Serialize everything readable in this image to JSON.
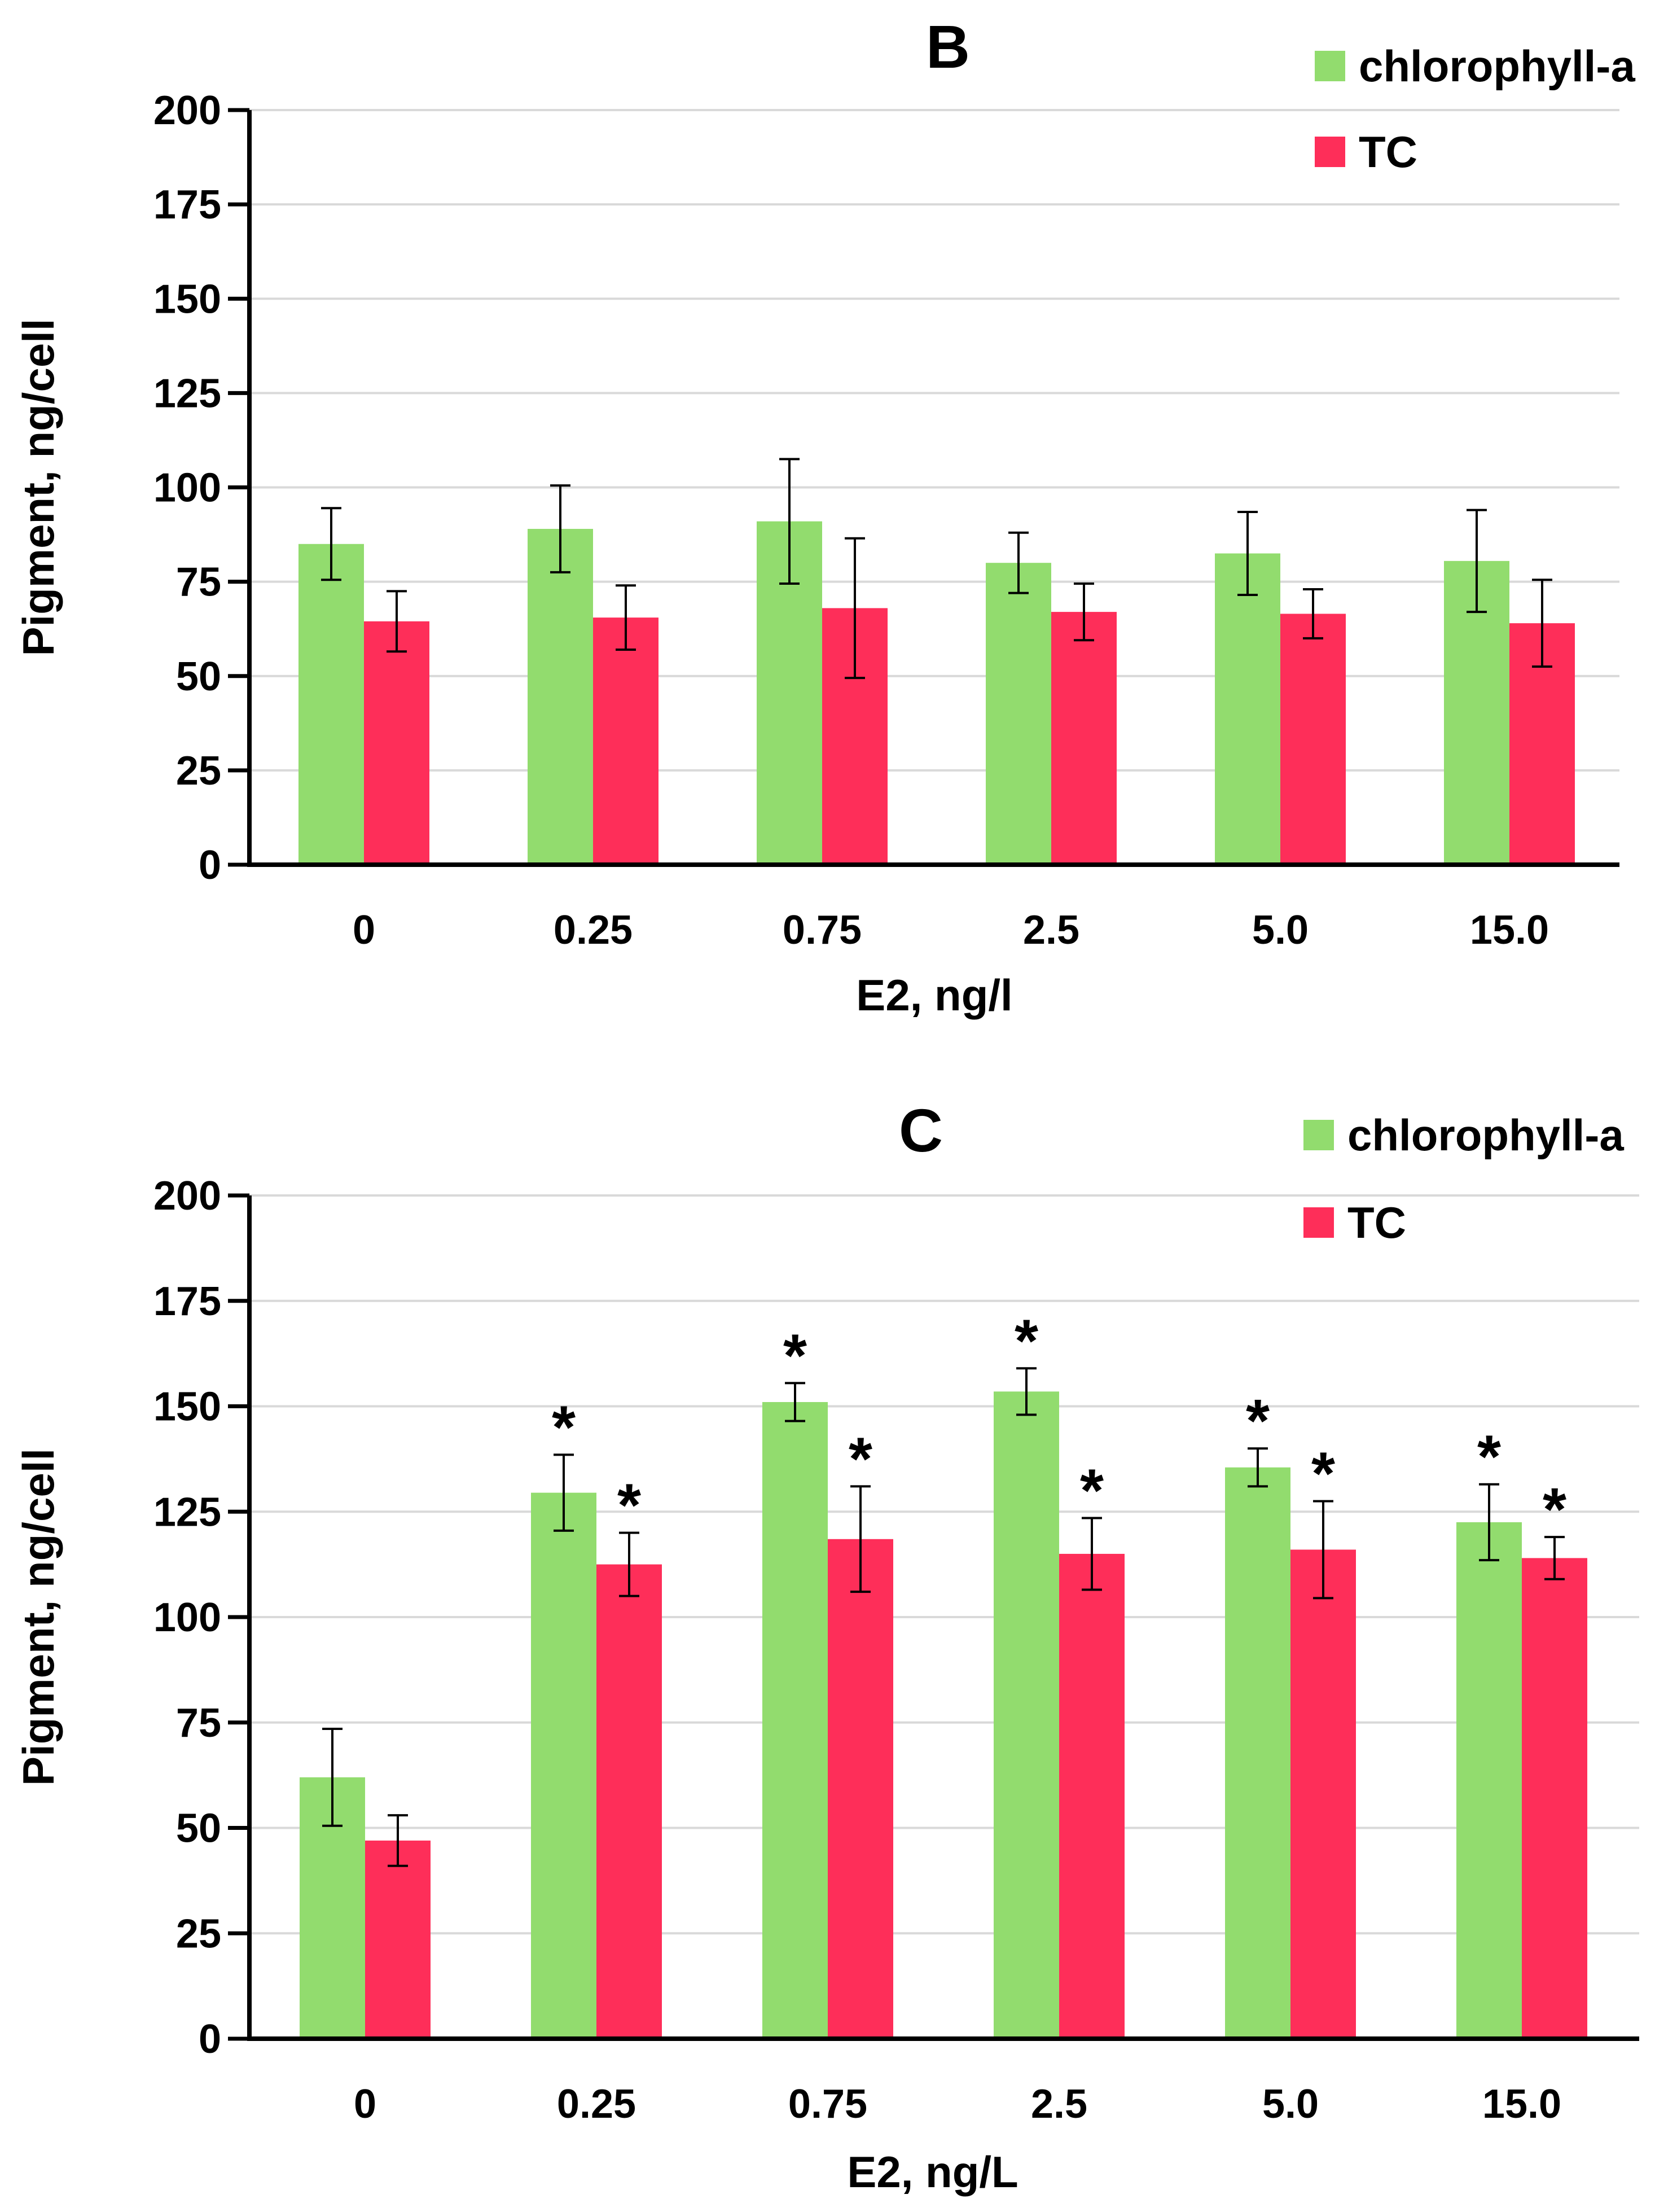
{
  "chart_data": [
    {
      "type": "bar",
      "title": "B",
      "xlabel": "E2, ng/l",
      "ylabel": "Pigment, ng/cell",
      "ylim": [
        0,
        200
      ],
      "yticks": [
        0,
        25,
        50,
        75,
        100,
        125,
        150,
        175,
        200
      ],
      "grid": true,
      "legend_position": "top-right",
      "categories": [
        "0",
        "0.25",
        "0.75",
        "2.5",
        "5.0",
        "15.0"
      ],
      "series": [
        {
          "name": "chlorophyll-a",
          "color": "#92dc6e",
          "values": [
            85,
            89,
            91,
            80,
            82.5,
            80.5
          ],
          "errors": [
            9.5,
            11.5,
            16.5,
            8,
            11,
            13.5
          ],
          "significant": [
            false,
            false,
            false,
            false,
            false,
            false
          ]
        },
        {
          "name": "TC",
          "color": "#fe2e59",
          "values": [
            64.5,
            65.5,
            68,
            67,
            66.5,
            64
          ],
          "errors": [
            8,
            8.5,
            18.5,
            7.5,
            6.5,
            11.5
          ],
          "significant": [
            false,
            false,
            false,
            false,
            false,
            false
          ]
        }
      ]
    },
    {
      "type": "bar",
      "title": "C",
      "xlabel": "E2, ng/L",
      "ylabel": "Pigment, ng/cell",
      "ylim": [
        0,
        200
      ],
      "yticks": [
        0,
        25,
        50,
        75,
        100,
        125,
        150,
        175,
        200
      ],
      "grid": true,
      "legend_position": "top-right",
      "significance_marker": "*",
      "categories": [
        "0",
        "0.25",
        "0.75",
        "2.5",
        "5.0",
        "15.0"
      ],
      "series": [
        {
          "name": "chlorophyll-a",
          "color": "#92dc6e",
          "values": [
            62,
            129.5,
            151,
            153.5,
            135.5,
            122.5
          ],
          "errors": [
            11.5,
            9,
            4.5,
            5.5,
            4.5,
            9
          ],
          "significant": [
            false,
            true,
            true,
            true,
            true,
            true
          ]
        },
        {
          "name": "TC",
          "color": "#fe2e59",
          "values": [
            47,
            112.5,
            118.5,
            115,
            116,
            114
          ],
          "errors": [
            6,
            7.5,
            12.5,
            8.5,
            11.5,
            5
          ],
          "significant": [
            false,
            true,
            true,
            true,
            true,
            true
          ]
        }
      ]
    }
  ]
}
